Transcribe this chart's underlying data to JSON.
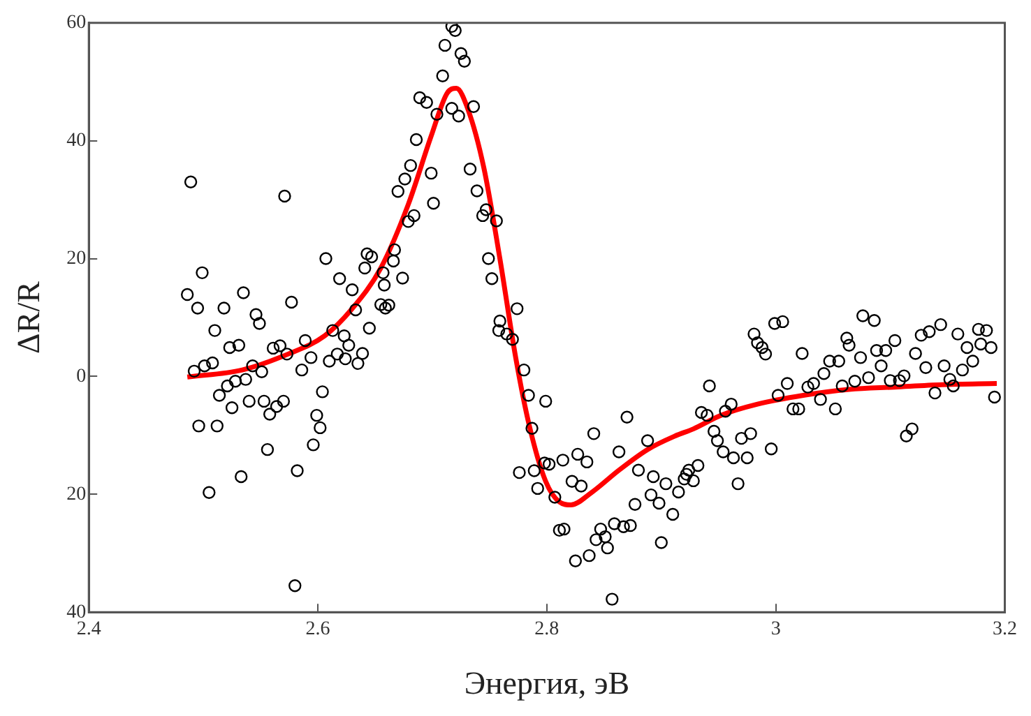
{
  "chart_data": {
    "type": "scatter",
    "xlabel": "Энергия, эВ",
    "ylabel": "ΔR/R",
    "xlim": [
      2.4,
      3.2
    ],
    "xticks": [
      2.4,
      2.6,
      2.8,
      3,
      3.2
    ],
    "ylim": [
      -40,
      60
    ],
    "yticks": [
      {
        "value": -40,
        "label": "40"
      },
      {
        "value": -20,
        "label": "20"
      },
      0,
      20,
      40,
      60
    ],
    "grid": false,
    "legend": false,
    "series": [
      {
        "marker": "circle",
        "color": "#000000",
        "x": [
          2.489,
          2.486,
          2.495,
          2.499,
          2.492,
          2.501,
          2.508,
          2.496,
          2.505,
          2.51,
          2.512,
          2.514,
          2.518,
          2.521,
          2.523,
          2.525,
          2.528,
          2.531,
          2.533,
          2.535,
          2.537,
          2.54,
          2.543,
          2.546,
          2.549,
          2.551,
          2.553,
          2.556,
          2.558,
          2.561,
          2.564,
          2.567,
          2.57,
          2.571,
          2.573,
          2.577,
          2.58,
          2.582,
          2.586,
          2.589,
          2.594,
          2.596,
          2.599,
          2.602,
          2.604,
          2.607,
          2.61,
          2.613,
          2.617,
          2.619,
          2.623,
          2.624,
          2.627,
          2.63,
          2.633,
          2.635,
          2.639,
          2.641,
          2.645,
          2.647,
          2.643,
          2.657,
          2.655,
          2.659,
          2.658,
          2.662,
          2.666,
          2.674,
          2.667,
          2.679,
          2.684,
          2.67,
          2.676,
          2.681,
          2.699,
          2.701,
          2.686,
          2.689,
          2.695,
          2.704,
          2.709,
          2.711,
          2.717,
          2.72,
          2.725,
          2.728,
          2.717,
          2.723,
          2.736,
          2.733,
          2.739,
          2.744,
          2.747,
          2.756,
          2.749,
          2.752,
          2.759,
          2.758,
          2.765,
          2.77,
          2.774,
          2.78,
          2.784,
          2.787,
          2.799,
          2.776,
          2.789,
          2.792,
          2.798,
          2.802,
          2.807,
          2.811,
          2.815,
          2.814,
          2.822,
          2.827,
          2.83,
          2.835,
          2.841,
          2.825,
          2.837,
          2.843,
          2.847,
          2.851,
          2.853,
          2.859,
          2.857,
          2.863,
          2.87,
          2.867,
          2.873,
          2.877,
          2.88,
          2.888,
          2.891,
          2.893,
          2.898,
          2.9,
          2.904,
          2.91,
          2.915,
          2.92,
          2.924,
          2.922,
          2.928,
          2.932,
          2.942,
          2.935,
          2.94,
          2.946,
          2.949,
          2.954,
          2.956,
          2.961,
          2.963,
          2.967,
          2.97,
          2.975,
          2.978,
          2.981,
          2.984,
          2.988,
          2.991,
          2.996,
          2.999,
          3.006,
          3.002,
          3.01,
          3.015,
          3.02,
          3.023,
          3.028,
          3.033,
          3.039,
          3.042,
          3.047,
          3.052,
          3.055,
          3.058,
          3.062,
          3.064,
          3.069,
          3.074,
          3.076,
          3.081,
          3.086,
          3.088,
          3.092,
          3.096,
          3.1,
          3.104,
          3.108,
          3.112,
          3.114,
          3.119,
          3.122,
          3.127,
          3.131,
          3.134,
          3.139,
          3.144,
          3.147,
          3.152,
          3.155,
          3.159,
          3.163,
          3.167,
          3.172,
          3.177,
          3.179,
          3.184,
          3.188,
          3.191
        ],
        "values": [
          33,
          13.9,
          11.6,
          17.6,
          0.9,
          1.8,
          2.3,
          -8.4,
          -19.7,
          7.8,
          -8.4,
          -3.2,
          11.6,
          -1.6,
          4.9,
          -5.3,
          -0.8,
          5.3,
          -17,
          14.2,
          -0.5,
          -4.2,
          1.8,
          10.5,
          9,
          0.8,
          -4.2,
          -12.4,
          -6.4,
          4.8,
          -5.1,
          5.2,
          -4.2,
          30.6,
          3.8,
          12.6,
          -35.5,
          -16,
          1.1,
          6.1,
          3.2,
          -11.6,
          -6.6,
          -8.7,
          -2.6,
          20,
          2.6,
          7.8,
          3.8,
          16.6,
          6.9,
          3,
          5.3,
          14.7,
          11.3,
          2.2,
          3.9,
          18.4,
          8.2,
          20.3,
          20.8,
          17.6,
          12.2,
          11.6,
          15.5,
          12.1,
          19.6,
          16.7,
          21.5,
          26.3,
          27.3,
          31.4,
          33.5,
          35.8,
          34.5,
          29.4,
          40.2,
          47.3,
          46.5,
          44.5,
          51,
          56.2,
          59.4,
          58.7,
          54.8,
          53.5,
          45.5,
          44.2,
          45.8,
          35.2,
          31.5,
          27.3,
          28.3,
          26.4,
          20,
          16.6,
          9.4,
          7.8,
          7.2,
          6.3,
          11.5,
          1.1,
          -3.2,
          -8.8,
          -4.2,
          -16.3,
          -16,
          -19,
          -14.7,
          -14.9,
          -20.5,
          -26.1,
          -25.9,
          -14.2,
          -17.8,
          -13.2,
          -18.6,
          -14.5,
          -9.7,
          -31.3,
          -30.4,
          -27.7,
          -25.9,
          -27.2,
          -29.1,
          -25,
          -37.8,
          -12.8,
          -6.9,
          -25.5,
          -25.3,
          -21.7,
          -15.9,
          -10.9,
          -20.1,
          -17,
          -21.5,
          -28.2,
          -18.2,
          -23.4,
          -19.6,
          -17.4,
          -15.9,
          -16.6,
          -17.7,
          -15.1,
          -1.6,
          -6.1,
          -6.6,
          -9.3,
          -10.9,
          -12.8,
          -5.9,
          -4.7,
          -13.8,
          -18.2,
          -10.5,
          -13.8,
          -9.7,
          7.2,
          5.7,
          4.9,
          3.8,
          -12.3,
          9,
          9.3,
          -3.2,
          -1.2,
          -5.5,
          -5.5,
          3.9,
          -1.8,
          -1.2,
          -3.9,
          0.5,
          2.6,
          -5.5,
          2.6,
          -1.6,
          6.5,
          5.3,
          -0.8,
          3.2,
          10.3,
          -0.2,
          9.5,
          4.4,
          1.8,
          4.4,
          -0.7,
          6.1,
          -0.7,
          0.1,
          -10.1,
          -8.9,
          3.9,
          7,
          1.5,
          7.6,
          -2.8,
          8.8,
          1.8,
          -0.5,
          -1.6,
          7.2,
          1.1,
          4.9,
          2.6,
          8,
          5.5,
          7.8,
          4.9,
          -3.5
        ]
      },
      {
        "type": "line",
        "marker": "none",
        "color": "#ff0000",
        "x": [
          2.486,
          2.534,
          2.574,
          2.606,
          2.63,
          2.655,
          2.679,
          2.699,
          2.713,
          2.721,
          2.731,
          2.745,
          2.759,
          2.773,
          2.785,
          2.799,
          2.811,
          2.821,
          2.839,
          2.863,
          2.888,
          2.912,
          2.928,
          2.952,
          2.984,
          3.024,
          3.064,
          3.104,
          3.145,
          3.193
        ],
        "values": [
          -0.1,
          1.1,
          3.8,
          6.9,
          11.5,
          18.4,
          29.2,
          40.8,
          48.1,
          48.9,
          45.4,
          35.4,
          20,
          3,
          -8.6,
          -17.8,
          -21.3,
          -21.8,
          -19.7,
          -15.9,
          -12.4,
          -10.1,
          -8.9,
          -6.6,
          -4.7,
          -3.2,
          -2.2,
          -1.8,
          -1.4,
          -1.2
        ]
      }
    ]
  }
}
